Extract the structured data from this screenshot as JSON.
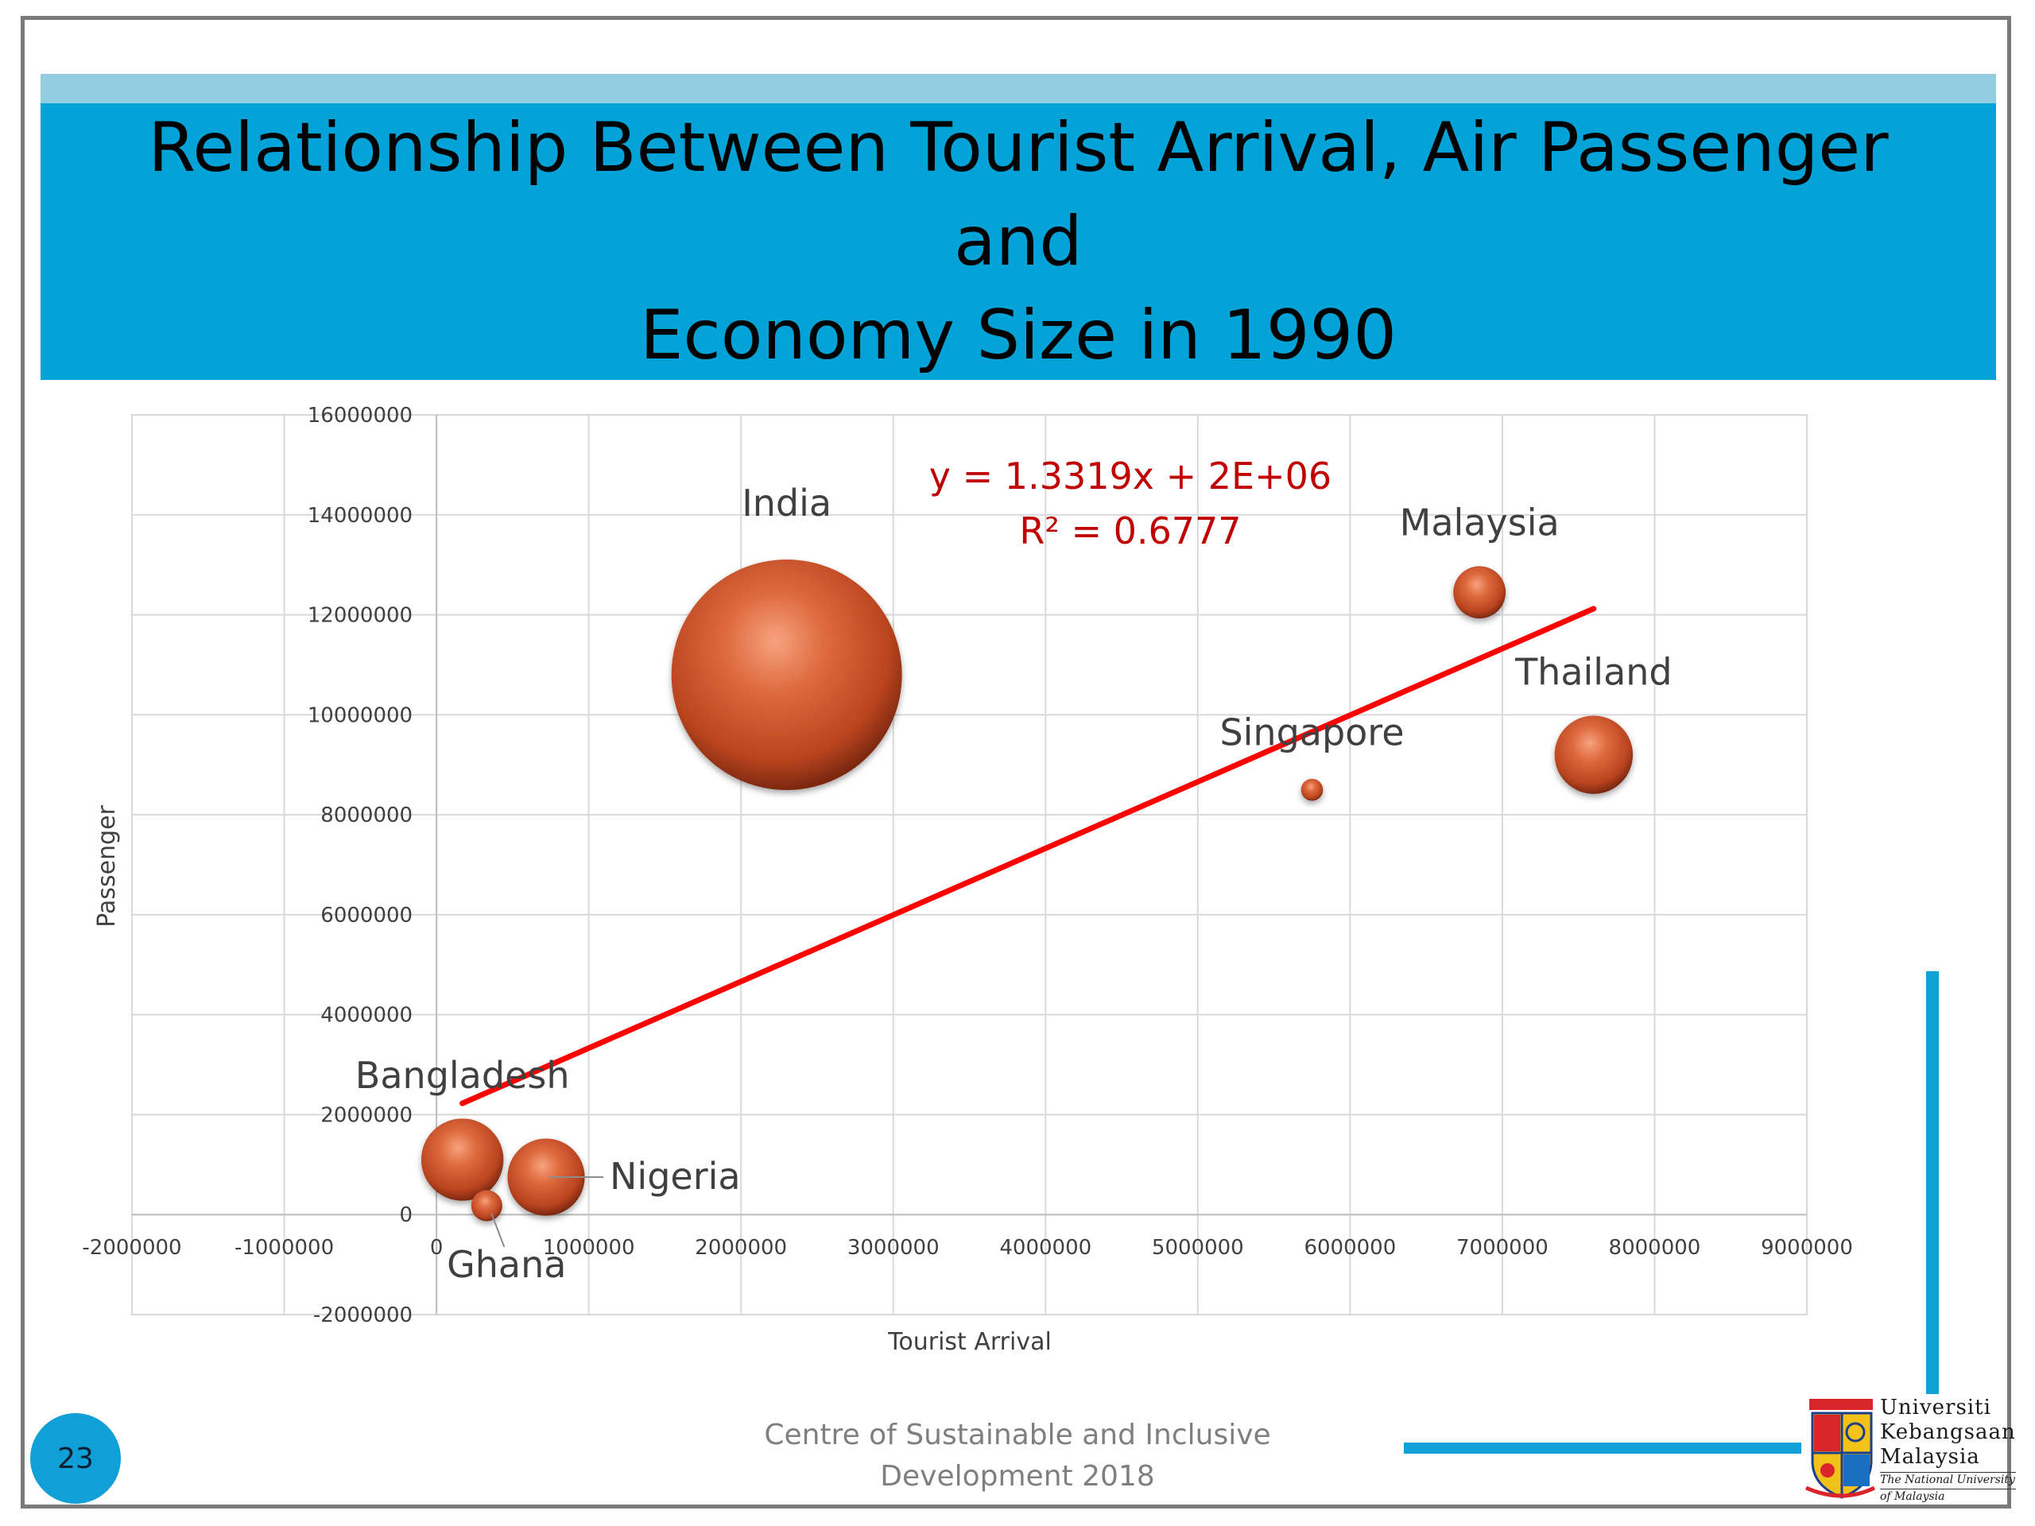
{
  "slide": {
    "title_line1": "Relationship Between Tourist Arrival, Air Passenger and",
    "title_line2": "Economy Size in 1990",
    "page_number": "23",
    "footer_line1": "Centre of Sustainable and Inclusive",
    "footer_line2": "Development 2018",
    "logo": {
      "line1": "Universiti",
      "line2": "Kebangsaan",
      "line3": "Malaysia",
      "sub1": "The National University",
      "sub2": "of Malaysia"
    },
    "colors": {
      "band": "#03a3d8",
      "band_light": "#92cde0",
      "accent": "#109fd6",
      "bubble": "#c8522a",
      "trendline": "#ff0000",
      "equation": "#c00000"
    }
  },
  "chart_data": {
    "type": "bubble",
    "xlabel": "Tourist Arrival",
    "ylabel": "Passenger",
    "xlim": [
      -2000000,
      9000000
    ],
    "ylim": [
      -2000000,
      16000000
    ],
    "xticks": [
      -2000000,
      -1000000,
      0,
      1000000,
      2000000,
      3000000,
      4000000,
      5000000,
      6000000,
      7000000,
      8000000,
      9000000
    ],
    "yticks": [
      -2000000,
      0,
      2000000,
      4000000,
      6000000,
      8000000,
      10000000,
      12000000,
      14000000,
      16000000
    ],
    "grid": true,
    "series": [
      {
        "points": [
          {
            "label": "India",
            "x": 2300000,
            "y": 10800000,
            "size": 330
          },
          {
            "label": "Malaysia",
            "x": 6850000,
            "y": 12450000,
            "size": 17
          },
          {
            "label": "Thailand",
            "x": 7600000,
            "y": 9200000,
            "size": 38
          },
          {
            "label": "Singapore",
            "x": 5750000,
            "y": 8500000,
            "size": 3
          },
          {
            "label": "Bangladesh",
            "x": 170000,
            "y": 1100000,
            "size": 42
          },
          {
            "label": "Nigeria",
            "x": 720000,
            "y": 750000,
            "size": 37
          },
          {
            "label": "Ghana",
            "x": 330000,
            "y": 180000,
            "size": 6
          }
        ]
      }
    ],
    "trendline": {
      "x_range": [
        170000,
        7600000
      ],
      "equation": "y = 1.3319x + 2E+06",
      "r_squared": "R² = 0.6777"
    }
  }
}
